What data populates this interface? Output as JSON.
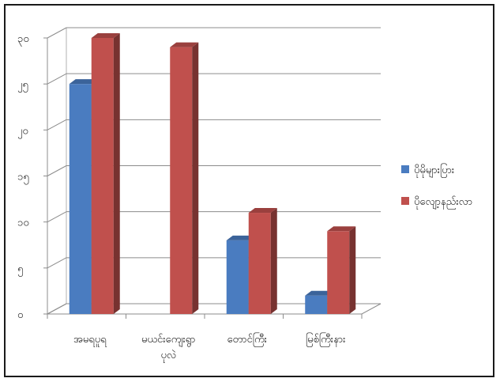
{
  "chart_data": {
    "type": "bar",
    "three_d": true,
    "categories": [
      [
        "အမရပူရ"
      ],
      [
        "မယင်းကျေးရွာ",
        "ပုလဲ"
      ],
      [
        "တောင်ကြီး"
      ],
      [
        "မြစ်ကြီးနား"
      ]
    ],
    "series": [
      {
        "name": "ပိုမိုများပြား",
        "values": [
          25,
          0,
          8,
          2
        ],
        "color": "#4a7cc0"
      },
      {
        "name": "ပိုလျော့နည်းလာ",
        "values": [
          30,
          29,
          11,
          9
        ],
        "color": "#c0504d"
      }
    ],
    "y_ticks": [
      "၀",
      "၅",
      "၁၀",
      "၁၅",
      "၂၀",
      "၂၅",
      "၃၀"
    ],
    "ylim": [
      0,
      30
    ],
    "y_step": 5,
    "grid": true,
    "legend_position": "right"
  }
}
